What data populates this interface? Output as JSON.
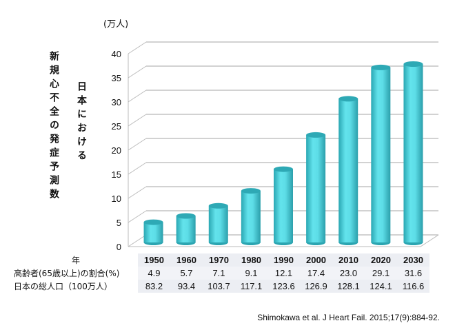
{
  "chart_data": {
    "type": "bar",
    "style": "3d-cylinder",
    "title": "",
    "ylabel": "新規心不全の発症予測数",
    "ylabel_sub": "日本における",
    "unit": "(万人)",
    "categories": [
      "1950",
      "1960",
      "1970",
      "1980",
      "1990",
      "2000",
      "2010",
      "2020",
      "2030"
    ],
    "values": [
      4.2,
      5.5,
      7.6,
      10.7,
      15.2,
      22.3,
      29.8,
      36.3,
      37.0
    ],
    "ylim": [
      0,
      40
    ],
    "yticks": [
      "0",
      "5",
      "10",
      "15",
      "20",
      "25",
      "30",
      "35",
      "40"
    ],
    "grid": true,
    "bar_color": "#4fd8e2"
  },
  "table": {
    "year_label": "年",
    "row1_label": "高齢者(65歳以上)の割合(%)",
    "row2_label": "日本の総人口（100万人）",
    "years": [
      "1950",
      "1960",
      "1970",
      "1980",
      "1990",
      "2000",
      "2010",
      "2020",
      "2030"
    ],
    "elderly_pct": [
      "4.9",
      "5.7",
      "7.1",
      "9.1",
      "12.1",
      "17.4",
      "23.0",
      "29.1",
      "31.6"
    ],
    "population": [
      "83.2",
      "93.4",
      "103.7",
      "117.1",
      "123.6",
      "126.9",
      "128.1",
      "124.1",
      "116.6"
    ]
  },
  "citation": "Shimokawa et al. J Heart Fail. 2015;17(9):884-92."
}
